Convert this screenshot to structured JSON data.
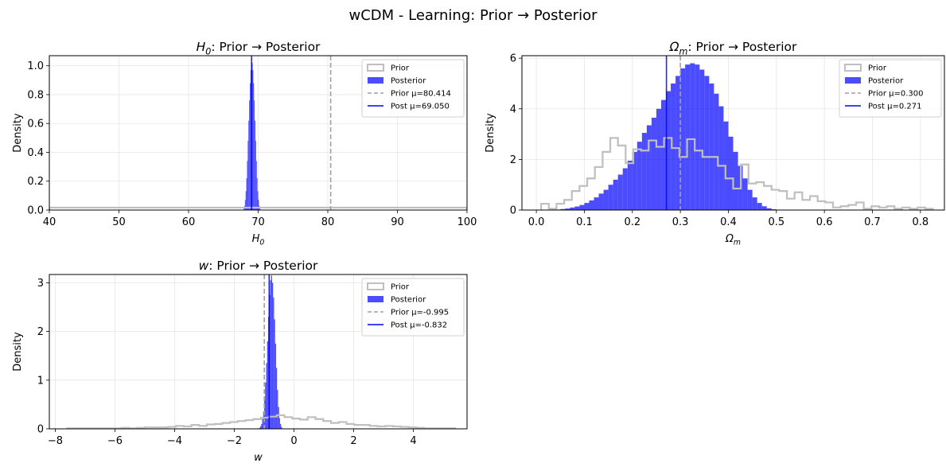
{
  "figure": {
    "suptitle": "wCDM - Learning: Prior → Posterior",
    "ylabel": "Density",
    "colors": {
      "prior": "#bfbfbf",
      "posterior": "#0000ff",
      "prior_mean_line": "#a0a0a0",
      "post_mean_line": "#0000ff",
      "grid": "#e6e6e6"
    }
  },
  "chart_data": [
    {
      "type": "histogram",
      "title_var": "H",
      "title_sub": "0",
      "title_rest": ": Prior → Posterior",
      "xlabel_var": "H",
      "xlabel_sub": "0",
      "ylabel": "Density",
      "xlim": [
        40,
        100
      ],
      "ylim": [
        0,
        1.07
      ],
      "xticks": [
        40,
        50,
        60,
        70,
        80,
        90,
        100
      ],
      "yticks": [
        0.0,
        0.2,
        0.4,
        0.6,
        0.8,
        1.0
      ],
      "xtick_labels": [
        "40",
        "50",
        "60",
        "70",
        "80",
        "90",
        "100"
      ],
      "ytick_labels": [
        "0.0",
        "0.2",
        "0.4",
        "0.6",
        "0.8",
        "1.0"
      ],
      "grid": true,
      "legend_position": "top-right",
      "legend": [
        "Prior",
        "Posterior",
        "Prior μ=80.414",
        "Post μ=69.050"
      ],
      "prior": {
        "edges": [
          40,
          90,
          100
        ],
        "density": [
          0.017,
          0.017
        ]
      },
      "posterior": {
        "start": 67.9,
        "width": 0.1,
        "density": [
          0.01,
          0.03,
          0.07,
          0.13,
          0.22,
          0.34,
          0.48,
          0.62,
          0.76,
          0.88,
          0.97,
          1.02,
          1.02,
          0.97,
          0.88,
          0.76,
          0.62,
          0.48,
          0.34,
          0.22,
          0.13,
          0.07,
          0.03,
          0.01
        ]
      },
      "prior_mean": 80.414,
      "post_mean": 69.05
    },
    {
      "type": "histogram",
      "title_var": "Ω",
      "title_sub": "m",
      "title_rest": ": Prior → Posterior",
      "xlabel_var": "Ω",
      "xlabel_sub": "m",
      "ylabel": "Density",
      "xlim": [
        -0.03,
        0.85
      ],
      "ylim": [
        0,
        6.1
      ],
      "xticks": [
        0.0,
        0.1,
        0.2,
        0.3,
        0.4,
        0.5,
        0.6,
        0.7,
        0.8
      ],
      "yticks": [
        0,
        2,
        4,
        6
      ],
      "xtick_labels": [
        "0.0",
        "0.1",
        "0.2",
        "0.3",
        "0.4",
        "0.5",
        "0.6",
        "0.7",
        "0.8"
      ],
      "ytick_labels": [
        "0",
        "2",
        "4",
        "6"
      ],
      "grid": true,
      "legend_position": "top-right",
      "legend": [
        "Prior",
        "Posterior",
        "Prior μ=0.300",
        "Post μ=0.271"
      ],
      "prior": {
        "start": 0.01,
        "width": 0.016,
        "density": [
          0.25,
          0.05,
          0.25,
          0.4,
          0.75,
          0.95,
          1.25,
          1.7,
          2.3,
          2.85,
          2.55,
          1.85,
          2.4,
          2.35,
          2.75,
          2.5,
          2.85,
          2.45,
          2.1,
          2.8,
          2.35,
          2.1,
          2.1,
          1.75,
          1.25,
          0.85,
          1.8,
          1.05,
          1.1,
          0.95,
          0.8,
          0.75,
          0.45,
          0.7,
          0.4,
          0.55,
          0.35,
          0.3,
          0.1,
          0.15,
          0.2,
          0.3,
          0.05,
          0.15,
          0.1,
          0.15,
          0.05,
          0.1,
          0.05,
          0.1,
          0.05
        ]
      },
      "posterior": {
        "start": 0.03,
        "width": 0.01,
        "density": [
          0.01,
          0.02,
          0.04,
          0.06,
          0.1,
          0.14,
          0.2,
          0.28,
          0.38,
          0.5,
          0.65,
          0.8,
          1.0,
          1.2,
          1.4,
          1.65,
          1.95,
          2.3,
          2.7,
          3.05,
          3.35,
          3.65,
          4.0,
          4.35,
          4.7,
          5.0,
          5.3,
          5.6,
          5.75,
          5.8,
          5.75,
          5.55,
          5.3,
          5.0,
          4.6,
          4.1,
          3.5,
          2.9,
          2.3,
          1.75,
          1.25,
          0.8,
          0.5,
          0.28,
          0.15,
          0.07,
          0.03
        ]
      },
      "prior_mean": 0.3,
      "post_mean": 0.271
    },
    {
      "type": "histogram",
      "title_var": "w",
      "title_sub": "",
      "title_rest": ": Prior → Posterior",
      "xlabel_var": "w",
      "xlabel_sub": "",
      "ylabel": "Density",
      "xlim": [
        -8.2,
        5.8
      ],
      "ylim": [
        0,
        3.17
      ],
      "xticks": [
        -8,
        -6,
        -4,
        -2,
        0,
        2,
        4
      ],
      "yticks": [
        0,
        1,
        2,
        3
      ],
      "xtick_labels": [
        "−8",
        "−6",
        "−4",
        "−2",
        "0",
        "2",
        "4"
      ],
      "ytick_labels": [
        "0",
        "1",
        "2",
        "3"
      ],
      "grid": true,
      "legend_position": "top-right",
      "legend": [
        "Prior",
        "Posterior",
        "Prior μ=-0.995",
        "Post μ=-0.832"
      ],
      "prior": {
        "start": -7.6,
        "width": 0.26,
        "density": [
          0.01,
          0.01,
          0.01,
          0.01,
          0.01,
          0.01,
          0.01,
          0.02,
          0.01,
          0.02,
          0.03,
          0.03,
          0.03,
          0.04,
          0.06,
          0.05,
          0.08,
          0.06,
          0.09,
          0.1,
          0.12,
          0.14,
          0.16,
          0.18,
          0.2,
          0.23,
          0.25,
          0.28,
          0.24,
          0.21,
          0.19,
          0.24,
          0.2,
          0.16,
          0.12,
          0.14,
          0.1,
          0.08,
          0.08,
          0.06,
          0.05,
          0.06,
          0.05,
          0.04,
          0.03,
          0.02,
          0.01,
          0.01,
          0.01,
          0.01
        ]
      },
      "posterior": {
        "start": -1.2,
        "width": 0.0333,
        "density": [
          0.01,
          0.02,
          0.05,
          0.1,
          0.2,
          0.35,
          0.6,
          0.95,
          1.35,
          1.8,
          2.3,
          2.75,
          3.05,
          3.15,
          3.0,
          2.7,
          2.25,
          1.75,
          1.25,
          0.8,
          0.45,
          0.22,
          0.1,
          0.04
        ]
      },
      "prior_mean": -0.995,
      "post_mean": -0.832
    }
  ]
}
